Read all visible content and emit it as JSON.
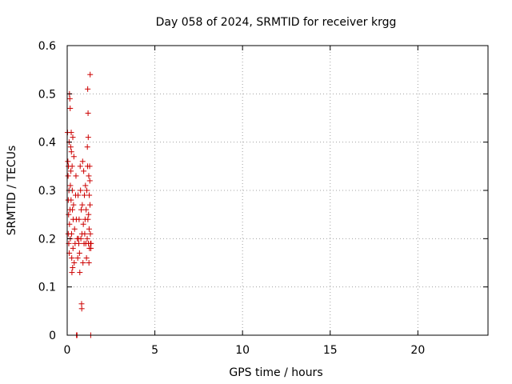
{
  "chart_data": {
    "type": "scatter",
    "title": "Day 058 of 2024, SRMTID for receiver krgg",
    "xlabel": "GPS time / hours",
    "ylabel": "SRMTID / TECUs",
    "xlim": [
      0,
      24
    ],
    "ylim": [
      0,
      0.6
    ],
    "xticks": [
      0,
      5,
      10,
      15,
      20
    ],
    "xtick_labels": [
      "0",
      "5",
      "10",
      "15",
      "20"
    ],
    "yticks": [
      0,
      0.1,
      0.2,
      0.3,
      0.4,
      0.5,
      0.6
    ],
    "ytick_labels": [
      "0",
      "0.1",
      "0.2",
      "0.3",
      "0.4",
      "0.5",
      "0.6"
    ],
    "grid": true,
    "marker": "+",
    "color": "#cc0000",
    "series": [
      {
        "name": "SRMTID",
        "points": [
          [
            0.02,
            0.42
          ],
          [
            0.04,
            0.36
          ],
          [
            0.05,
            0.33
          ],
          [
            0.06,
            0.28
          ],
          [
            0.06,
            0.21
          ],
          [
            0.07,
            0.35
          ],
          [
            0.08,
            0.25
          ],
          [
            0.09,
            0.19
          ],
          [
            0.1,
            0.3
          ],
          [
            0.11,
            0.4
          ],
          [
            0.12,
            0.17
          ],
          [
            0.13,
            0.5
          ],
          [
            0.13,
            0.23
          ],
          [
            0.15,
            0.49
          ],
          [
            0.16,
            0.26
          ],
          [
            0.17,
            0.47
          ],
          [
            0.18,
            0.31
          ],
          [
            0.18,
            0.2
          ],
          [
            0.2,
            0.39
          ],
          [
            0.21,
            0.34
          ],
          [
            0.22,
            0.28
          ],
          [
            0.23,
            0.42
          ],
          [
            0.24,
            0.38
          ],
          [
            0.25,
            0.21
          ],
          [
            0.26,
            0.16
          ],
          [
            0.27,
            0.13
          ],
          [
            0.28,
            0.35
          ],
          [
            0.29,
            0.3
          ],
          [
            0.3,
            0.26
          ],
          [
            0.31,
            0.14
          ],
          [
            0.32,
            0.41
          ],
          [
            0.33,
            0.18
          ],
          [
            0.34,
            0.24
          ],
          [
            0.36,
            0.27
          ],
          [
            0.38,
            0.37
          ],
          [
            0.4,
            0.15
          ],
          [
            0.42,
            0.22
          ],
          [
            0.45,
            0.19
          ],
          [
            0.48,
            0.29
          ],
          [
            0.5,
            0.33
          ],
          [
            0.52,
            0.24
          ],
          [
            0.53,
            0.0
          ],
          [
            0.55,
            0.0
          ],
          [
            0.56,
            0.0
          ],
          [
            0.58,
            0.2
          ],
          [
            0.6,
            0.16
          ],
          [
            0.62,
            0.29
          ],
          [
            0.64,
            0.2
          ],
          [
            0.66,
            0.19
          ],
          [
            0.68,
            0.24
          ],
          [
            0.7,
            0.17
          ],
          [
            0.72,
            0.13
          ],
          [
            0.74,
            0.35
          ],
          [
            0.76,
            0.3
          ],
          [
            0.78,
            0.2
          ],
          [
            0.8,
            0.26
          ],
          [
            0.82,
            0.065
          ],
          [
            0.83,
            0.055
          ],
          [
            0.84,
            0.21
          ],
          [
            0.86,
            0.27
          ],
          [
            0.88,
            0.36
          ],
          [
            0.9,
            0.15
          ],
          [
            0.92,
            0.23
          ],
          [
            0.94,
            0.34
          ],
          [
            0.96,
            0.19
          ],
          [
            0.98,
            0.29
          ],
          [
            1.0,
            0.21
          ],
          [
            1.02,
            0.24
          ],
          [
            1.04,
            0.31
          ],
          [
            1.06,
            0.19
          ],
          [
            1.08,
            0.26
          ],
          [
            1.1,
            0.16
          ],
          [
            1.12,
            0.3
          ],
          [
            1.14,
            0.2
          ],
          [
            1.15,
            0.39
          ],
          [
            1.16,
            0.35
          ],
          [
            1.17,
            0.51
          ],
          [
            1.18,
            0.24
          ],
          [
            1.19,
            0.46
          ],
          [
            1.2,
            0.41
          ],
          [
            1.21,
            0.19
          ],
          [
            1.22,
            0.25
          ],
          [
            1.23,
            0.33
          ],
          [
            1.24,
            0.15
          ],
          [
            1.25,
            0.22
          ],
          [
            1.26,
            0.29
          ],
          [
            1.27,
            0.18
          ],
          [
            1.28,
            0.35
          ],
          [
            1.29,
            0.32
          ],
          [
            1.3,
            0.27
          ],
          [
            1.31,
            0.54
          ],
          [
            1.32,
            0.21
          ],
          [
            1.33,
            0.19
          ],
          [
            1.34,
            0.0
          ],
          [
            1.35,
            0.18
          ],
          [
            1.36,
            0.19
          ]
        ]
      }
    ]
  }
}
